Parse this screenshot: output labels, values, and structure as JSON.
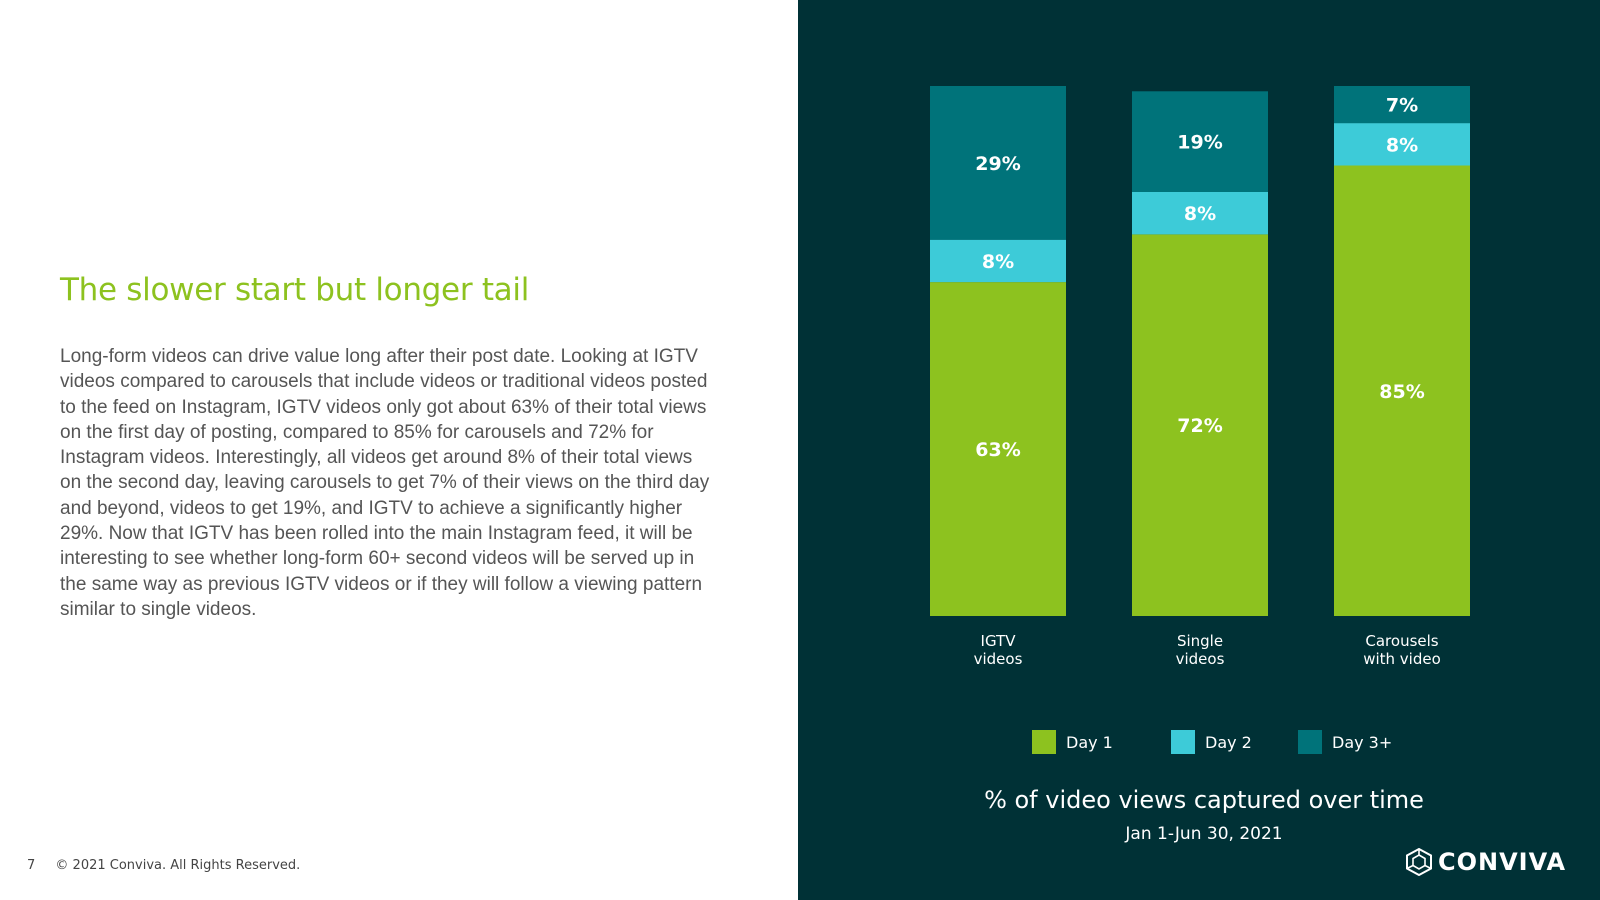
{
  "text": {
    "heading": "The slower start but longer tail",
    "body": "Long-form videos can drive value long after their post date. Looking at IGTV videos compared to carousels that include videos or traditional videos posted to the feed on Instagram, IGTV videos only got about 63% of their total views on the first day of posting, compared to 85% for carousels and 72% for Instagram videos. Interestingly, all videos get around 8% of their total views on the second day, leaving carousels to get 7% of their views on the third day and beyond, videos to get 19%, and IGTV to achieve a significantly higher 29%. Now that IGTV has been rolled into the main Instagram feed, it will be interesting to see whether long-form 60+ second videos will be served up in the same way as previous IGTV videos or if they will follow a viewing pattern similar to single videos."
  },
  "footer": {
    "page_number": "7",
    "copyright": "© 2021 Conviva. All Rights Reserved."
  },
  "logo": {
    "text": "CONVIVA",
    "icon": "conviva-logo-icon"
  },
  "colors": {
    "accent_green": "#8dc21f",
    "panel_background": "#003136",
    "day1": "#8dc21f",
    "day2": "#3dcbd8",
    "day3": "#00737a"
  },
  "chart_data": {
    "type": "bar",
    "stacked": true,
    "title": "% of video views captured over time",
    "subtitle": "Jan 1-Jun 30, 2021",
    "categories": [
      "IGTV videos",
      "Single videos",
      "Carousels with video"
    ],
    "category_lines": [
      [
        "IGTV",
        "videos"
      ],
      [
        "Single",
        "videos"
      ],
      [
        "Carousels",
        "with video"
      ]
    ],
    "series": [
      {
        "name": "Day 1",
        "values": [
          63,
          72,
          85
        ],
        "labels": [
          "63%",
          "72%",
          "85%"
        ],
        "color": "#8dc21f"
      },
      {
        "name": "Day 2",
        "values": [
          8,
          8,
          8
        ],
        "labels": [
          "8%",
          "8%",
          "8%"
        ],
        "color": "#3dcbd8"
      },
      {
        "name": "Day 3+",
        "values": [
          29,
          19,
          7
        ],
        "labels": [
          "29%",
          "19%",
          "7%"
        ],
        "color": "#00737a"
      }
    ],
    "ylim": [
      0,
      100
    ],
    "grid": false,
    "legend_position": "bottom",
    "xlabel": "",
    "ylabel": ""
  }
}
